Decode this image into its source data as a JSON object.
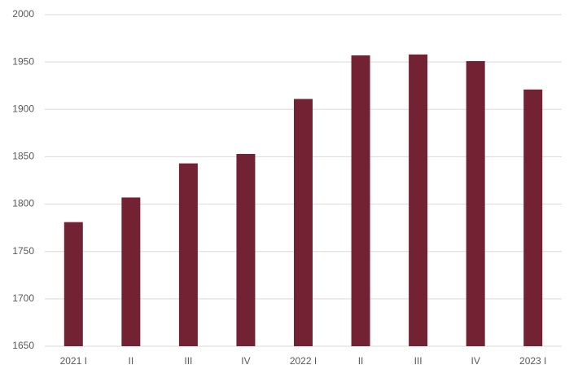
{
  "chart_data": {
    "type": "bar",
    "categories": [
      "2021 I",
      "II",
      "III",
      "IV",
      "2022 I",
      "II",
      "III",
      "IV",
      "2023 I"
    ],
    "values": [
      1781,
      1807,
      1843,
      1853,
      1911,
      1957,
      1958,
      1951,
      1921
    ],
    "color": "#722233",
    "ylim": [
      1650,
      2000
    ],
    "yticks": [
      1650,
      1700,
      1750,
      1800,
      1850,
      1900,
      1950,
      2000
    ],
    "grid": true
  }
}
